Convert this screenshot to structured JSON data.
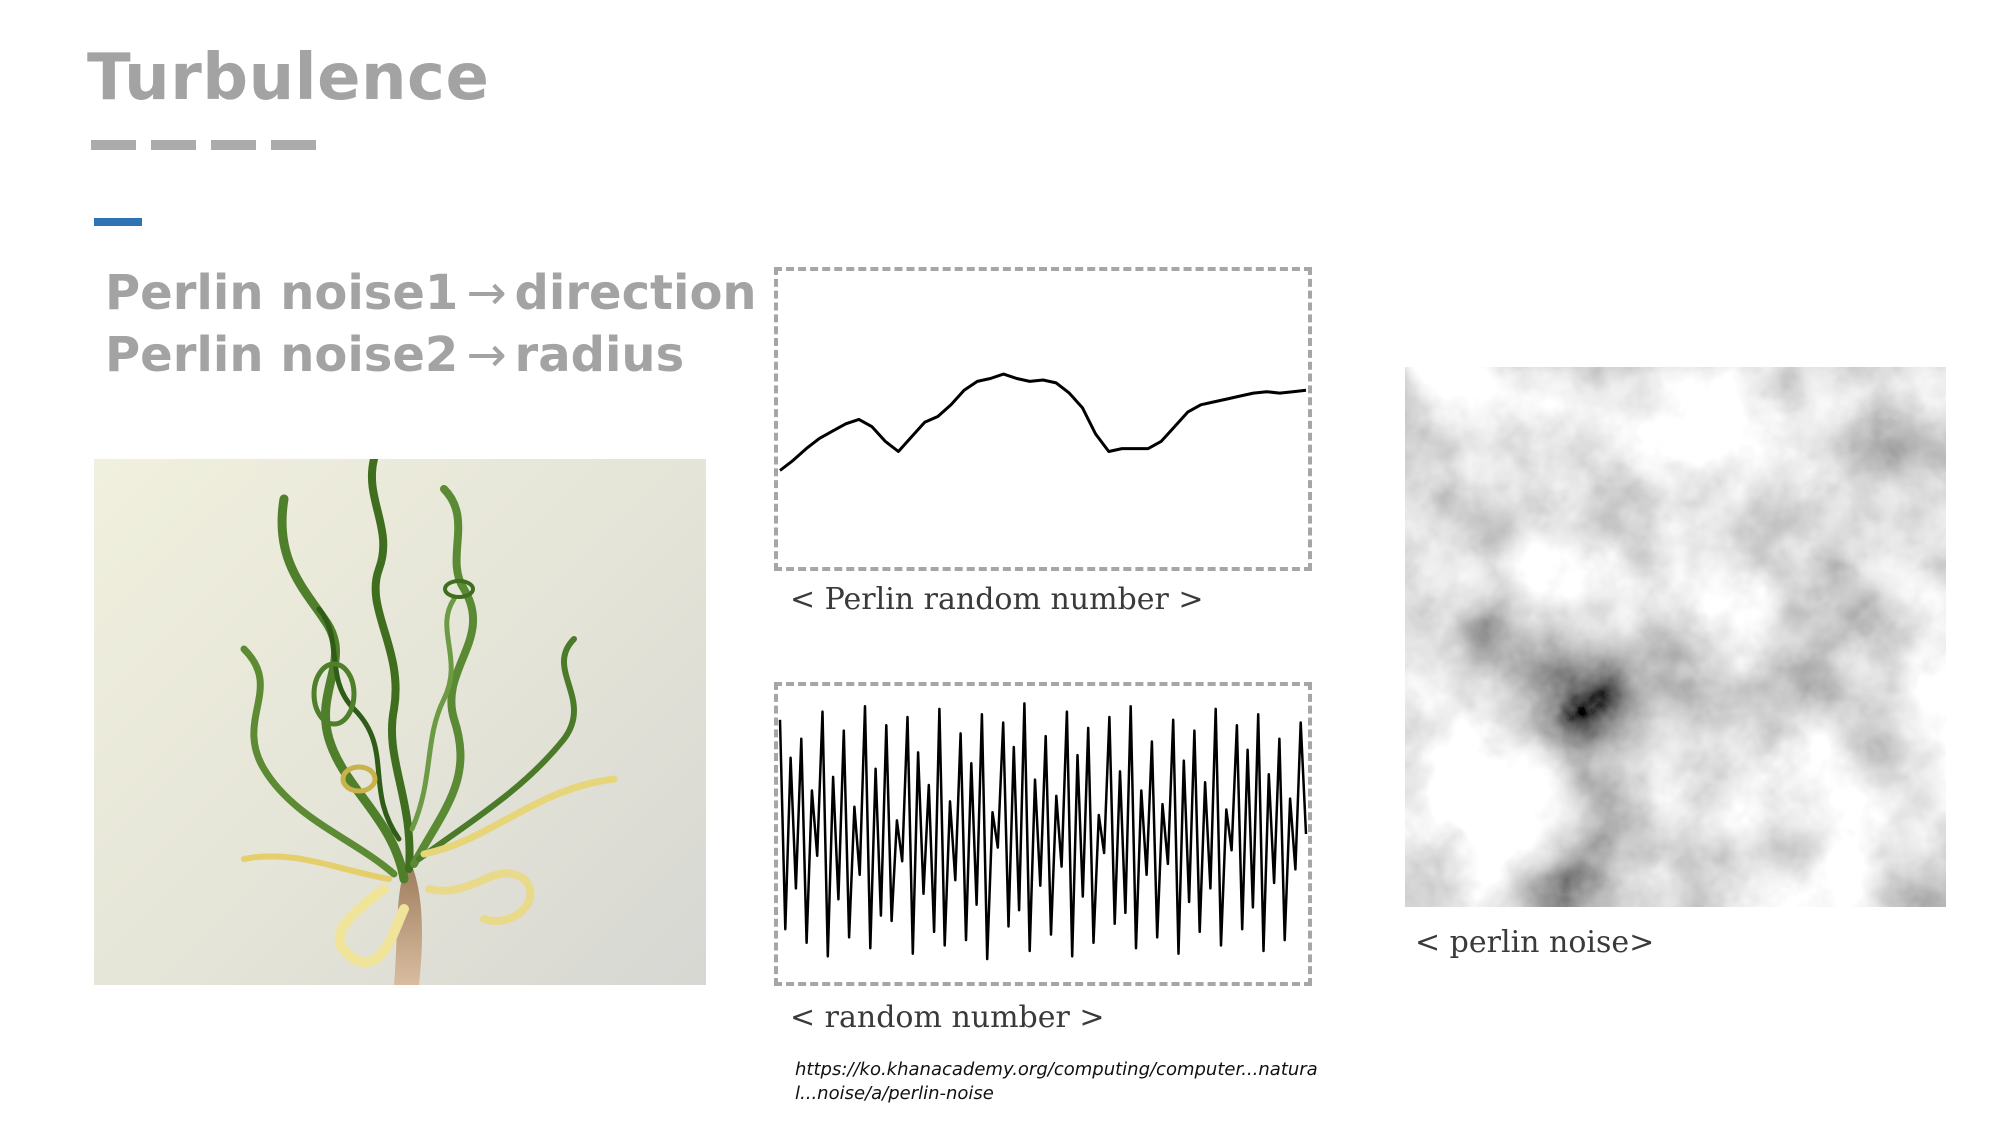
{
  "slide": {
    "title": "Turbulence",
    "subtitle_line1": {
      "text": "Perlin noise1",
      "arrow": "→",
      "result": "direction"
    },
    "subtitle_line2": {
      "text": "Perlin noise2",
      "arrow": "→",
      "result": "radius"
    },
    "accent_color": "#2e74b5",
    "title_color": "#a3a3a3"
  },
  "panels": {
    "perlin_caption": "< Perlin random number >",
    "random_caption": "< random number >",
    "noise_caption": "< perlin noise>"
  },
  "source_link": "https://ko.khanacademy.org/computing/computer...natural...noise/a/perlin-noise",
  "chart_data": [
    {
      "type": "line",
      "title": "",
      "xlabel": "",
      "ylabel": "",
      "x": [
        0,
        1,
        2,
        3,
        4,
        5,
        6,
        7,
        8,
        9,
        10,
        11,
        12,
        13,
        14,
        15,
        16,
        17,
        18,
        19,
        20,
        21,
        22,
        23,
        24,
        25,
        26,
        27,
        28,
        29,
        30,
        31,
        32,
        33,
        34,
        35,
        36,
        37,
        38,
        39,
        40
      ],
      "y": [
        0.25,
        0.32,
        0.4,
        0.47,
        0.52,
        0.57,
        0.6,
        0.55,
        0.45,
        0.38,
        0.48,
        0.58,
        0.62,
        0.7,
        0.8,
        0.86,
        0.88,
        0.91,
        0.88,
        0.86,
        0.87,
        0.85,
        0.78,
        0.68,
        0.5,
        0.38,
        0.4,
        0.4,
        0.4,
        0.45,
        0.55,
        0.65,
        0.7,
        0.72,
        0.74,
        0.76,
        0.78,
        0.79,
        0.78,
        0.79,
        0.8
      ],
      "ylim": [
        0,
        1
      ],
      "grid": false
    },
    {
      "type": "line",
      "title": "",
      "xlabel": "",
      "ylabel": "",
      "x": [
        0,
        1,
        2,
        3,
        4,
        5,
        6,
        7,
        8,
        9,
        10,
        11,
        12,
        13,
        14,
        15,
        16,
        17,
        18,
        19,
        20,
        21,
        22,
        23,
        24,
        25,
        26,
        27,
        28,
        29,
        30,
        31,
        32,
        33,
        34,
        35,
        36,
        37,
        38,
        39,
        40,
        41,
        42,
        43,
        44,
        45,
        46,
        47,
        48,
        49,
        50,
        51,
        52,
        53,
        54,
        55,
        56,
        57,
        58,
        59,
        60,
        61,
        62,
        63,
        64,
        65,
        66,
        67,
        68,
        69,
        70,
        71,
        72,
        73,
        74,
        75,
        76,
        77,
        78,
        79,
        80,
        81,
        82,
        83,
        84,
        85,
        86,
        87,
        88,
        89,
        90,
        91,
        92,
        93,
        94,
        95,
        96,
        97,
        98,
        99
      ],
      "y": [
        0.92,
        0.15,
        0.78,
        0.3,
        0.85,
        0.1,
        0.66,
        0.42,
        0.95,
        0.05,
        0.71,
        0.26,
        0.88,
        0.12,
        0.6,
        0.35,
        0.97,
        0.08,
        0.74,
        0.2,
        0.9,
        0.18,
        0.55,
        0.4,
        0.93,
        0.06,
        0.8,
        0.28,
        0.68,
        0.14,
        0.96,
        0.09,
        0.62,
        0.33,
        0.87,
        0.11,
        0.76,
        0.24,
        0.94,
        0.04,
        0.58,
        0.45,
        0.91,
        0.16,
        0.82,
        0.22,
        0.98,
        0.07,
        0.7,
        0.31,
        0.86,
        0.13,
        0.64,
        0.38,
        0.95,
        0.05,
        0.79,
        0.27,
        0.89,
        0.1,
        0.57,
        0.43,
        0.93,
        0.17,
        0.73,
        0.21,
        0.97,
        0.08,
        0.66,
        0.35,
        0.84,
        0.12,
        0.61,
        0.39,
        0.92,
        0.06,
        0.77,
        0.25,
        0.88,
        0.14,
        0.69,
        0.3,
        0.96,
        0.09,
        0.59,
        0.44,
        0.9,
        0.15,
        0.81,
        0.23,
        0.94,
        0.07,
        0.72,
        0.32,
        0.85,
        0.11,
        0.63,
        0.37,
        0.91,
        0.5
      ],
      "ylim": [
        0,
        1
      ],
      "grid": false
    }
  ]
}
